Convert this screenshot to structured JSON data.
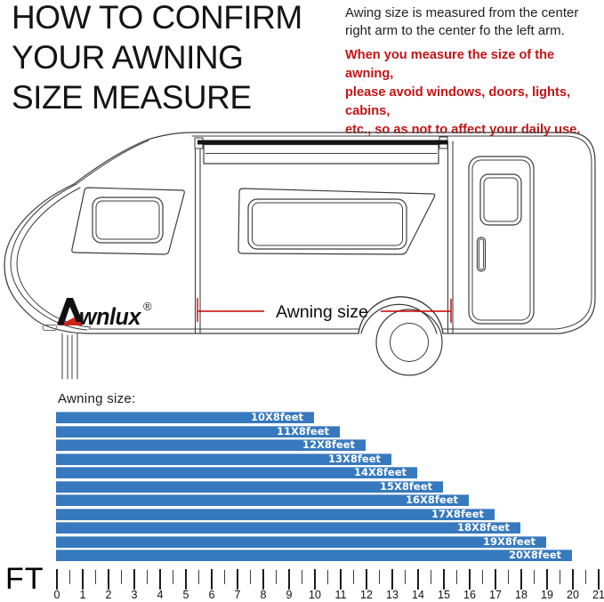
{
  "header": {
    "title_lines": [
      "HOW TO CONFIRM",
      "YOUR AWNING",
      "SIZE MEASURE"
    ],
    "note_lines": [
      "Awing size is measured from the center",
      "right arm to the center fo the left arm."
    ],
    "warning_lines": [
      "When you measure the size of the awning,",
      "please avoid windows, doors, lights, cabins,",
      "etc., so as not to affect your daily use."
    ],
    "warning_color": "#c41414"
  },
  "diagram": {
    "brand_mark": "A",
    "brand_text": "wnlux",
    "registered_symbol": "®",
    "measure_label": "Awning size",
    "measure_line_color": "#cc0000",
    "brand_red": "#cf2318"
  },
  "chart_data": {
    "type": "bar",
    "orientation": "horizontal",
    "title": "Awning size:",
    "categories": [
      "10X8feet",
      "11X8feet",
      "12X8feet",
      "13X8feet",
      "14X8feet",
      "15X8feet",
      "16X8feet",
      "17X8feet",
      "18X8feet",
      "19X8feet",
      "20X8feet"
    ],
    "values": [
      10,
      11,
      12,
      13,
      14,
      15,
      16,
      17,
      18,
      19,
      20
    ],
    "x_range": [
      0,
      21
    ],
    "axis_ticks": [
      0,
      1,
      2,
      3,
      4,
      5,
      6,
      7,
      8,
      9,
      10,
      11,
      12,
      13,
      14,
      15,
      16,
      17,
      18,
      19,
      20,
      21
    ],
    "minor_tick_step": 0.5,
    "unit_label": "FT",
    "bar_color": "#3779be",
    "bar_label_color": "#ffffff",
    "grid": false,
    "legend": false
  }
}
